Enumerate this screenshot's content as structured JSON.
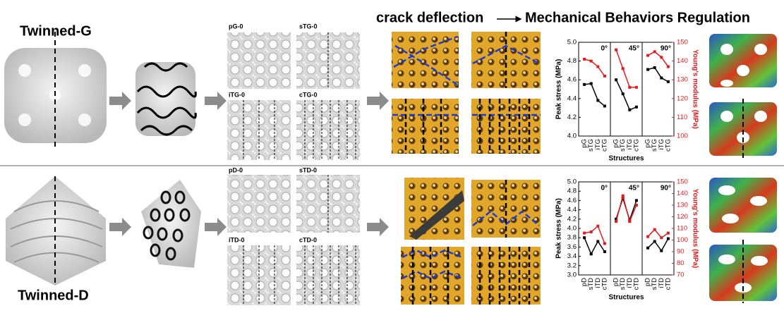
{
  "figure": {
    "top_label": "Twinned-G",
    "bottom_label": "Twinned-D",
    "header": {
      "left": "crack deflection",
      "right": "Mechanical Behaviors Regulation"
    },
    "lattice_labels": {
      "top": [
        "pG-0",
        "sTG-0",
        "iTG-0",
        "cTG-0"
      ],
      "bottom": [
        "pD-0",
        "sTD-0",
        "iTD-0",
        "cTD-0"
      ]
    }
  },
  "chart_data": [
    {
      "type": "line",
      "panels": [
        "0°",
        "45°",
        "90°"
      ],
      "categories": [
        "pG",
        "sTG",
        "iTG",
        "cTG",
        "pG",
        "sTG",
        "iTG",
        "cTG",
        "pG",
        "sTG",
        "iTG",
        "cTG"
      ],
      "xlabel": "Structures",
      "ylabel": "Peak stress (MPa)",
      "y2label": "Young's modulus (MPa)",
      "ylim": [
        4.0,
        5.0
      ],
      "yticks": [
        {
          "value": 4.0,
          "label": "4.0"
        },
        4.2,
        4.4,
        4.6,
        4.8,
        {
          "value": 5.0,
          "label": "5.0"
        }
      ],
      "y2lim": [
        100,
        150
      ],
      "y2ticks": [
        100,
        110,
        120,
        130,
        140,
        150
      ],
      "series": [
        {
          "color": "#000000",
          "values": [
            4.55,
            4.56,
            4.38,
            4.32,
            4.6,
            4.45,
            4.28,
            4.31,
            4.71,
            4.73,
            4.62,
            4.58
          ]
        },
        {
          "color": "#e41a1c",
          "axis": "y2",
          "values": [
            141,
            140,
            137,
            132,
            146,
            136,
            126,
            126,
            143,
            145,
            142,
            137
          ]
        }
      ]
    },
    {
      "type": "line",
      "panels": [
        "0°",
        "45°",
        "90°"
      ],
      "categories": [
        "pD",
        "sTD",
        "iTD",
        "cTD",
        "pD",
        "sTD",
        "iTD",
        "cTD",
        "pD",
        "sTD",
        "iTD",
        "cTD"
      ],
      "xlabel": "Structures",
      "ylabel": "Peak stress (MPa)",
      "y2label": "Young's modulus (MPa)",
      "ylim": [
        3.0,
        5.0
      ],
      "yticks": [
        {
          "value": 3.0,
          "label": "3.0"
        },
        3.2,
        3.4,
        3.6,
        3.8,
        {
          "value": 4.0,
          "label": "4.0"
        },
        4.2,
        4.4,
        4.6,
        4.8,
        {
          "value": 5.0,
          "label": "5.0"
        }
      ],
      "y2lim": [
        70,
        150
      ],
      "y2ticks": [
        70,
        80,
        90,
        100,
        110,
        120,
        130,
        140,
        150
      ],
      "series": [
        {
          "color": "#000000",
          "values": [
            3.8,
            3.45,
            3.72,
            3.5,
            4.2,
            4.65,
            4.18,
            4.6,
            3.58,
            3.72,
            3.52,
            3.78
          ]
        },
        {
          "color": "#e41a1c",
          "axis": "y2",
          "values": [
            106,
            107,
            112,
            97,
            116,
            138,
            116,
            130,
            103,
            109,
            102,
            106
          ]
        }
      ]
    }
  ]
}
